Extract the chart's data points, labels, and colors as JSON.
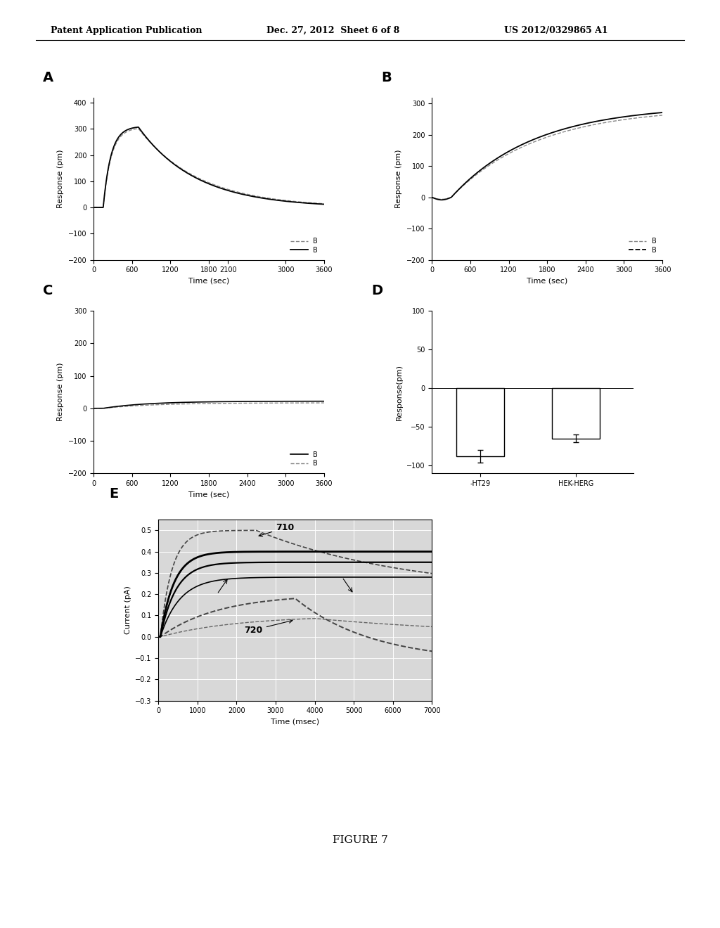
{
  "header_left": "Patent Application Publication",
  "header_mid": "Dec. 27, 2012  Sheet 6 of 8",
  "header_right": "US 2012/0329865 A1",
  "figure_label": "FIGURE 7",
  "panel_A": {
    "label": "A",
    "ylabel": "Response (pm)",
    "xlabel": "Time (sec)",
    "ylim": [
      -200,
      420
    ],
    "xlim": [
      0,
      3600
    ],
    "yticks": [
      -200,
      -100,
      0,
      100,
      200,
      300,
      400
    ],
    "xticks": [
      0,
      600,
      1200,
      1800,
      2100,
      3000,
      3600
    ]
  },
  "panel_B": {
    "label": "B",
    "ylabel": "Response (pm)",
    "xlabel": "Time (sec)",
    "ylim": [
      -200,
      320
    ],
    "xlim": [
      0,
      3600
    ],
    "yticks": [
      -200,
      -100,
      0,
      100,
      200,
      300
    ],
    "xticks": [
      0,
      600,
      1200,
      1800,
      2400,
      3000,
      3600
    ]
  },
  "panel_C": {
    "label": "C",
    "ylabel": "Response (pm)",
    "xlabel": "Time (sec)",
    "ylim": [
      -200,
      300
    ],
    "xlim": [
      0,
      3600
    ],
    "yticks": [
      -200,
      -100,
      0,
      100,
      200,
      300
    ],
    "xticks": [
      0,
      600,
      1200,
      1800,
      2400,
      3000,
      3600
    ]
  },
  "panel_D": {
    "label": "D",
    "ylabel": "Response(pm)",
    "ylim": [
      -110,
      100
    ],
    "yticks": [
      -100,
      -50,
      0,
      50,
      100
    ],
    "categories": [
      "-HT29",
      "HEK-HERG"
    ],
    "values": [
      -88,
      -65
    ],
    "errors": [
      8,
      5
    ]
  },
  "panel_E": {
    "label": "E",
    "ylabel": "Current (pA)",
    "xlabel": "Time (msec)",
    "ylim": [
      -0.3,
      0.55
    ],
    "xlim": [
      0,
      7000
    ],
    "yticks": [
      -0.3,
      -0.2,
      -0.1,
      0.0,
      0.1,
      0.2,
      0.3,
      0.4,
      0.5
    ],
    "xticks": [
      0,
      1000,
      2000,
      3000,
      4000,
      5000,
      6000,
      7000
    ],
    "annotation_710": "710",
    "annotation_720": "720"
  },
  "bg_color": "#ffffff"
}
